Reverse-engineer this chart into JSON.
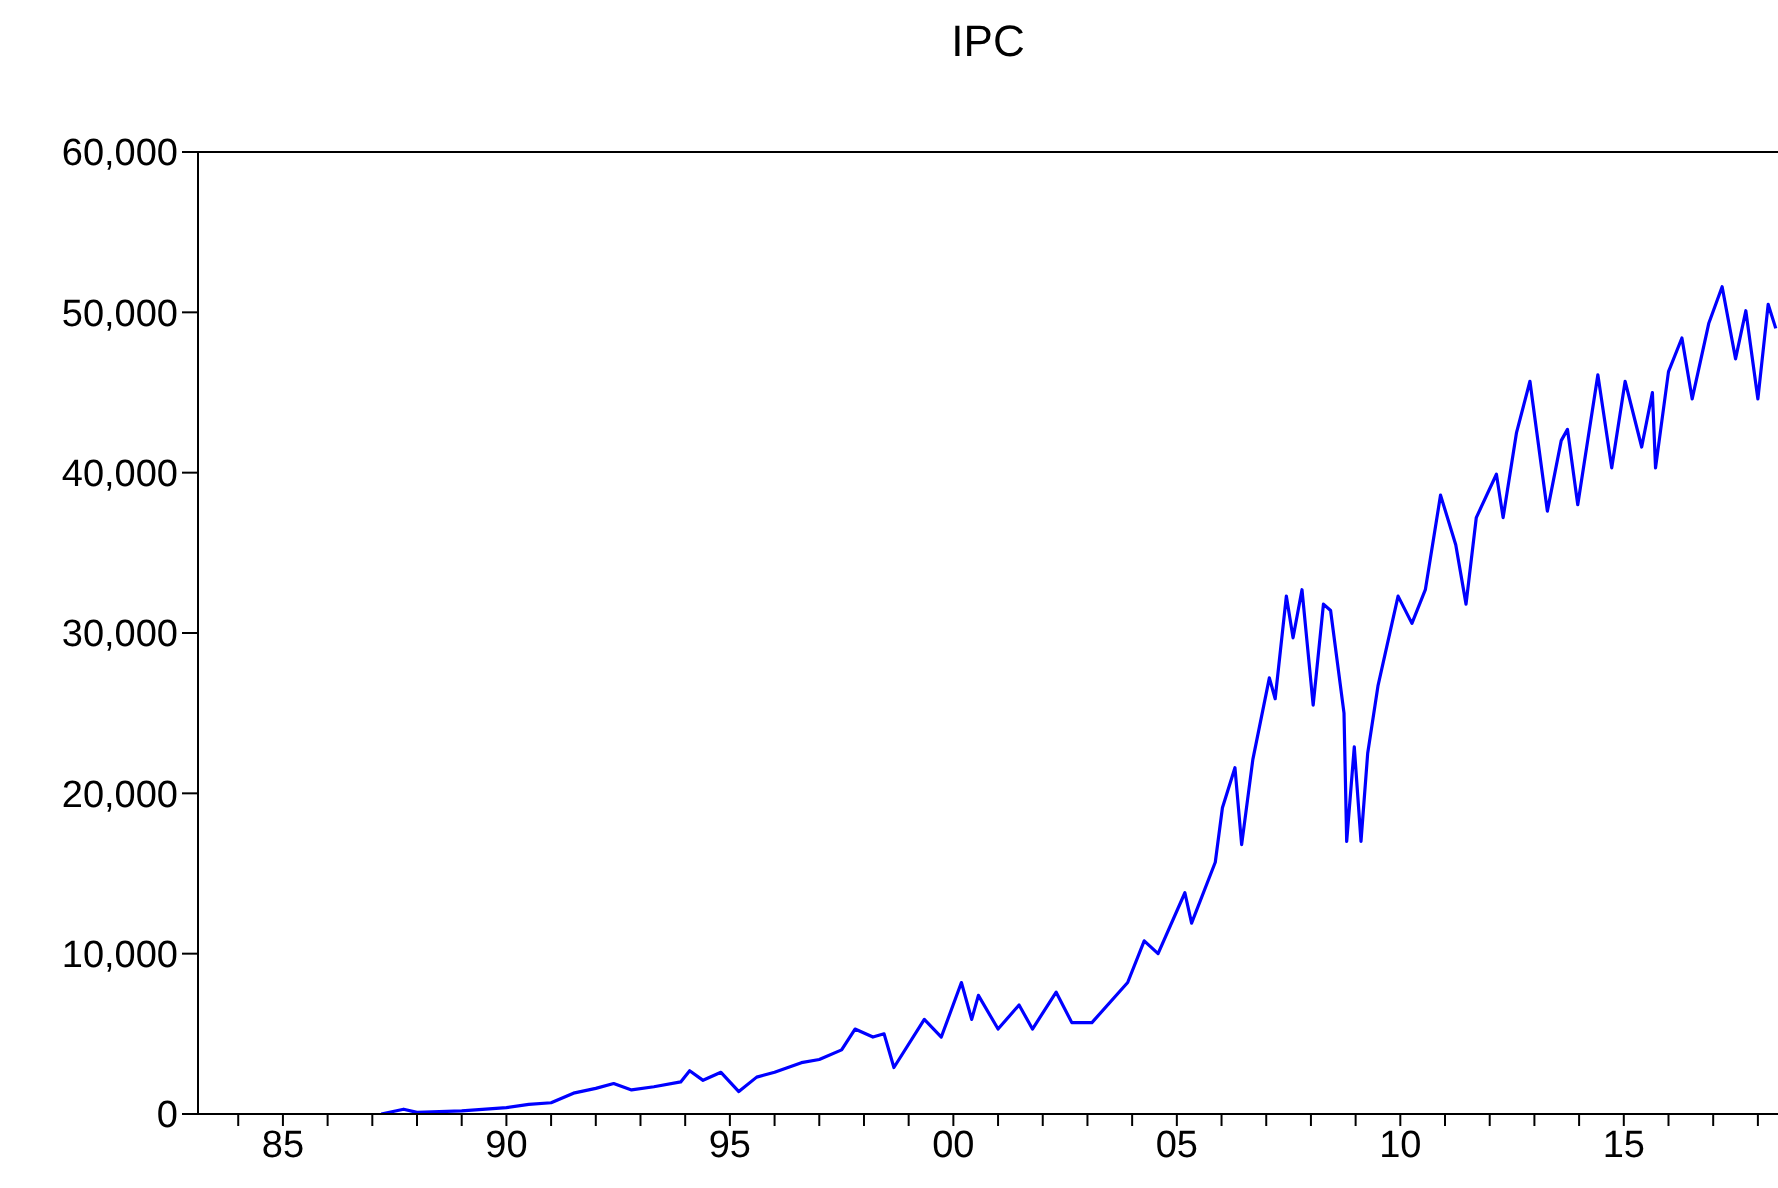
{
  "chart_data": {
    "type": "line",
    "title": "IPC",
    "marker": "none",
    "line_style": "solid",
    "xlim": [
      1983.1,
      2018.45
    ],
    "xticks": [
      {
        "value": 1984,
        "label": null
      },
      {
        "value": 1985,
        "label": "85"
      },
      {
        "value": 1986,
        "label": null
      },
      {
        "value": 1987,
        "label": null
      },
      {
        "value": 1988,
        "label": null
      },
      {
        "value": 1989,
        "label": null
      },
      {
        "value": 1990,
        "label": "90"
      },
      {
        "value": 1991,
        "label": null
      },
      {
        "value": 1992,
        "label": null
      },
      {
        "value": 1993,
        "label": null
      },
      {
        "value": 1994,
        "label": null
      },
      {
        "value": 1995,
        "label": "95"
      },
      {
        "value": 1996,
        "label": null
      },
      {
        "value": 1997,
        "label": null
      },
      {
        "value": 1998,
        "label": null
      },
      {
        "value": 1999,
        "label": null
      },
      {
        "value": 2000,
        "label": "00"
      },
      {
        "value": 2001,
        "label": null
      },
      {
        "value": 2002,
        "label": null
      },
      {
        "value": 2003,
        "label": null
      },
      {
        "value": 2004,
        "label": null
      },
      {
        "value": 2005,
        "label": "05"
      },
      {
        "value": 2006,
        "label": null
      },
      {
        "value": 2007,
        "label": null
      },
      {
        "value": 2008,
        "label": null
      },
      {
        "value": 2009,
        "label": null
      },
      {
        "value": 2010,
        "label": "10"
      },
      {
        "value": 2011,
        "label": null
      },
      {
        "value": 2012,
        "label": null
      },
      {
        "value": 2013,
        "label": null
      },
      {
        "value": 2014,
        "label": null
      },
      {
        "value": 2015,
        "label": "15"
      },
      {
        "value": 2016,
        "label": null
      },
      {
        "value": 2017,
        "label": null
      },
      {
        "value": 2018,
        "label": null
      }
    ],
    "ylim": [
      0,
      60000
    ],
    "yticks": [
      0,
      {
        "value": 10000,
        "label": "10,000"
      },
      {
        "value": 20000,
        "label": "20,000"
      },
      {
        "value": 30000,
        "label": "30,000"
      },
      {
        "value": 40000,
        "label": "40,000"
      },
      {
        "value": 50000,
        "label": "50,000"
      },
      {
        "value": 60000,
        "label": "60,000"
      }
    ],
    "x": [
      1987.2,
      1987.7,
      1988.0,
      1989.0,
      1990.0,
      1990.5,
      1991.0,
      1991.5,
      1992.0,
      1992.4,
      1992.8,
      1993.3,
      1993.9,
      1994.1,
      1994.4,
      1994.8,
      1995.2,
      1995.6,
      1996.0,
      1996.6,
      1997.0,
      1997.5,
      1997.8,
      1998.2,
      1998.45,
      1998.67,
      1999.35,
      1999.73,
      2000.18,
      2000.41,
      2000.56,
      2001.0,
      2001.47,
      2001.77,
      2002.3,
      2002.65,
      2003.1,
      2003.9,
      2004.27,
      2004.58,
      2005.18,
      2005.33,
      2005.86,
      2006.02,
      2006.3,
      2006.45,
      2006.7,
      2007.07,
      2007.2,
      2007.45,
      2007.6,
      2007.8,
      2008.05,
      2008.28,
      2008.44,
      2008.74,
      2008.8,
      2008.97,
      2009.12,
      2009.27,
      2009.5,
      2009.95,
      2010.26,
      2010.56,
      2010.9,
      2011.24,
      2011.47,
      2011.7,
      2012.15,
      2012.3,
      2012.6,
      2012.9,
      2013.29,
      2013.6,
      2013.74,
      2013.97,
      2014.42,
      2014.73,
      2015.03,
      2015.4,
      2015.64,
      2015.71,
      2016.0,
      2016.3,
      2016.53,
      2016.9,
      2017.2,
      2017.5,
      2017.73,
      2018.0,
      2018.23,
      2018.4
    ],
    "series": [
      {
        "color": "#0000ff",
        "values": [
          0,
          300,
          100,
          200,
          400,
          600,
          700,
          1300,
          1600,
          1900,
          1500,
          1700,
          2000,
          2700,
          2100,
          2600,
          1400,
          2300,
          2600,
          3200,
          3400,
          4000,
          5300,
          4800,
          5000,
          2900,
          5900,
          4800,
          8200,
          5900,
          7400,
          5300,
          6800,
          5300,
          7600,
          5700,
          5700,
          8200,
          10800,
          10000,
          13800,
          11900,
          15700,
          19100,
          21600,
          16800,
          22100,
          27200,
          25900,
          32300,
          29700,
          32700,
          25500,
          31800,
          31400,
          25000,
          17000,
          22900,
          17000,
          22500,
          26700,
          32300,
          30600,
          32700,
          38600,
          35500,
          31800,
          37200,
          39900,
          37200,
          42500,
          45700,
          37600,
          42000,
          42700,
          38000,
          46100,
          40300,
          45700,
          41600,
          45000,
          40300,
          46300,
          48400,
          44600,
          49300,
          51600,
          47100,
          50100,
          44600,
          50500,
          49000
        ]
      }
    ]
  }
}
